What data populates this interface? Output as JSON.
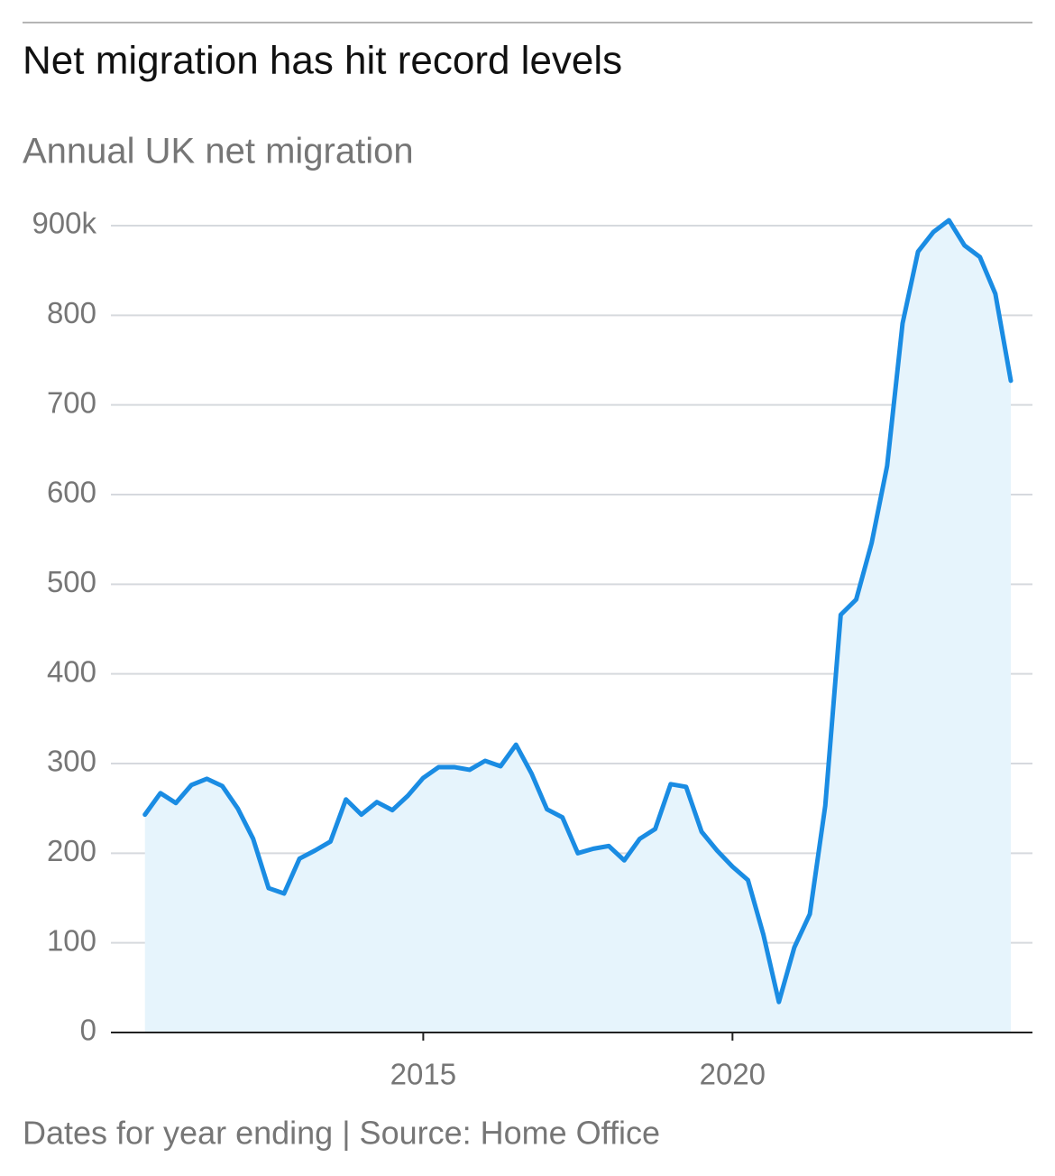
{
  "chart_data": {
    "type": "line",
    "title": "Net migration has hit record levels",
    "subtitle": "Annual UK net migration",
    "footnote": "Dates for year ending | Source: Home Office",
    "x": [
      2010.5,
      2010.75,
      2011,
      2011.25,
      2011.5,
      2011.75,
      2012,
      2012.25,
      2012.5,
      2012.75,
      2013,
      2013.25,
      2013.5,
      2013.75,
      2014,
      2014.25,
      2014.5,
      2014.75,
      2015,
      2015.25,
      2015.5,
      2015.75,
      2016,
      2016.25,
      2016.5,
      2016.75,
      2017,
      2017.25,
      2017.5,
      2017.75,
      2018,
      2018.25,
      2018.5,
      2018.75,
      2019,
      2019.25,
      2019.5,
      2019.75,
      2020,
      2020.25,
      2020.5,
      2020.75,
      2021,
      2021.25,
      2021.5,
      2021.75,
      2022,
      2022.25,
      2022.5,
      2022.75,
      2023,
      2023.25,
      2023.5,
      2023.75,
      2024,
      2024.25,
      2024.5
    ],
    "series": [
      {
        "name": "Net migration",
        "color": "#1a8ce3",
        "fill": "#e6f4fc",
        "values": [
          243,
          267,
          256,
          276,
          283,
          275,
          250,
          216,
          161,
          155,
          194,
          203,
          213,
          260,
          243,
          257,
          248,
          264,
          284,
          296,
          296,
          293,
          303,
          297,
          321,
          289,
          249,
          240,
          200,
          205,
          208,
          192,
          216,
          227,
          277,
          274,
          224,
          203,
          185,
          170,
          109,
          34,
          95,
          132,
          253,
          466,
          483,
          546,
          632,
          791,
          871,
          893,
          906,
          878,
          865,
          824,
          727
        ]
      }
    ],
    "xlim": [
      2009.95,
      2024.85
    ],
    "xticks": [
      2015,
      2020
    ],
    "ylim": [
      0,
      900
    ],
    "yticks": [
      0,
      100,
      200,
      300,
      400,
      500,
      600,
      700,
      800,
      {
        "value": 900,
        "label": "900k"
      }
    ],
    "grid": true
  }
}
